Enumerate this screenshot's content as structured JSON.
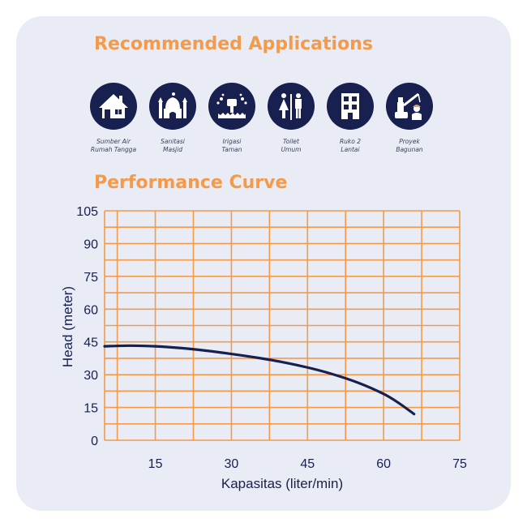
{
  "applications": {
    "title": "Recommended Applications",
    "items": [
      {
        "label": "Sumber Air\nRumah Tangga",
        "icon": "house-icon"
      },
      {
        "label": "Sanitasi\nMasjid",
        "icon": "mosque-icon"
      },
      {
        "label": "Irigasi\nTaman",
        "icon": "sprinkler-icon"
      },
      {
        "label": "Toilet\nUmum",
        "icon": "restroom-icon"
      },
      {
        "label": "Ruko 2\nLantai",
        "icon": "building-icon"
      },
      {
        "label": "Proyek\nBagunan",
        "icon": "construction-icon"
      }
    ]
  },
  "performance": {
    "title": "Performance Curve"
  },
  "colors": {
    "accent": "#f39a4b",
    "navy": "#17204f",
    "card": "#e9ecf5",
    "grid": "#f39a4b"
  },
  "chart_data": {
    "type": "line",
    "title": "",
    "xlabel": "Kapasitas (liter/min)",
    "ylabel": "Head (meter)",
    "xlim": [
      5,
      75
    ],
    "ylim": [
      0,
      105
    ],
    "x_ticks": [
      15,
      30,
      45,
      60,
      75
    ],
    "y_ticks": [
      0,
      15,
      30,
      45,
      60,
      75,
      90,
      105
    ],
    "grid": true,
    "series": [
      {
        "x": [
          5,
          10,
          15,
          20,
          25,
          30,
          35,
          40,
          45,
          50,
          55,
          60,
          63,
          66
        ],
        "y": [
          43,
          43.3,
          43,
          42.2,
          41,
          39.5,
          37.8,
          35.8,
          33.3,
          30.2,
          26.3,
          21.2,
          17,
          12
        ]
      }
    ]
  }
}
